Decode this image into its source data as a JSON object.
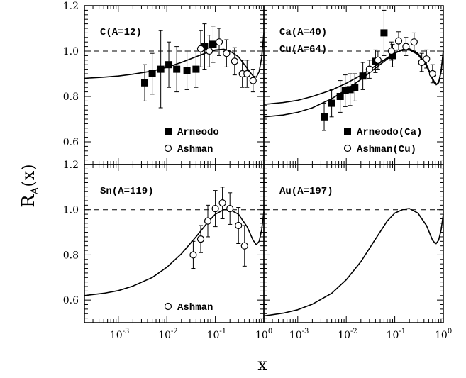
{
  "chart_data": {
    "type": "scatter",
    "xlabel": "x",
    "ylabel": "R_A(x)",
    "ylabel_main": "R",
    "ylabel_sub": "A",
    "ylabel_rest": "(x)",
    "x_scale": "log",
    "xlim": [
      0.0002,
      1.0
    ],
    "ylim": [
      0.5,
      1.2
    ],
    "x_tick_labels": [
      {
        "base": "10",
        "exp": "-3"
      },
      {
        "base": "10",
        "exp": "-2"
      },
      {
        "base": "10",
        "exp": "-1"
      },
      {
        "base": "10",
        "exp": "0"
      }
    ],
    "y_tick_labels": [
      "0.6",
      "0.8",
      "1.0",
      "1.2"
    ],
    "panels": [
      {
        "labels": [
          "C(A=12)"
        ],
        "legend": [
          {
            "marker": "filled-square",
            "text": "Arneodo"
          },
          {
            "marker": "open-circle",
            "text": "Ashman"
          }
        ],
        "series": [
          {
            "name": "Arneodo",
            "marker": "filled-square",
            "points": [
              {
                "x": 0.0035,
                "y": 0.86,
                "err": 0.08
              },
              {
                "x": 0.005,
                "y": 0.9,
                "err": 0.09
              },
              {
                "x": 0.0075,
                "y": 0.92,
                "err": 0.17
              },
              {
                "x": 0.011,
                "y": 0.94,
                "err": 0.1
              },
              {
                "x": 0.016,
                "y": 0.92,
                "err": 0.1
              },
              {
                "x": 0.026,
                "y": 0.915,
                "err": 0.085
              },
              {
                "x": 0.04,
                "y": 0.92,
                "err": 0.08
              },
              {
                "x": 0.06,
                "y": 1.02,
                "err": 0.1
              },
              {
                "x": 0.09,
                "y": 1.03,
                "err": 0.08
              }
            ]
          },
          {
            "name": "Ashman",
            "marker": "open-circle",
            "points": [
              {
                "x": 0.05,
                "y": 1.01,
                "err": 0.08
              },
              {
                "x": 0.075,
                "y": 1.0,
                "err": 0.07
              },
              {
                "x": 0.12,
                "y": 1.04,
                "err": 0.06
              },
              {
                "x": 0.17,
                "y": 0.99,
                "err": 0.06
              },
              {
                "x": 0.25,
                "y": 0.955,
                "err": 0.06
              },
              {
                "x": 0.36,
                "y": 0.9,
                "err": 0.06
              },
              {
                "x": 0.45,
                "y": 0.9,
                "err": 0.06
              },
              {
                "x": 0.6,
                "y": 0.87,
                "err": 0.05
              }
            ]
          }
        ],
        "curves": [
          {
            "x": [
              0.0002,
              0.0005,
              0.001,
              0.002,
              0.005,
              0.01,
              0.02,
              0.04,
              0.07,
              0.1,
              0.15,
              0.2,
              0.3,
              0.45,
              0.6,
              0.7,
              0.8,
              0.9,
              1.0
            ],
            "y": [
              0.88,
              0.885,
              0.89,
              0.898,
              0.912,
              0.928,
              0.95,
              0.975,
              0.995,
              1.005,
              1.008,
              1.0,
              0.975,
              0.925,
              0.89,
              0.885,
              0.91,
              0.97,
              1.08
            ]
          }
        ]
      },
      {
        "labels": [
          "Ca(A=40)",
          "Cu(A=64)"
        ],
        "legend": [
          {
            "marker": "filled-square",
            "text": "Arneodo(Ca)"
          },
          {
            "marker": "open-circle",
            "text": "Ashman(Cu)"
          }
        ],
        "series": [
          {
            "name": "Arneodo(Ca)",
            "marker": "filled-square",
            "points": [
              {
                "x": 0.0035,
                "y": 0.71,
                "err": 0.06
              },
              {
                "x": 0.005,
                "y": 0.77,
                "err": 0.06
              },
              {
                "x": 0.0075,
                "y": 0.8,
                "err": 0.07
              },
              {
                "x": 0.0095,
                "y": 0.825,
                "err": 0.07
              },
              {
                "x": 0.012,
                "y": 0.83,
                "err": 0.07
              },
              {
                "x": 0.015,
                "y": 0.84,
                "err": 0.06
              },
              {
                "x": 0.022,
                "y": 0.89,
                "err": 0.06
              },
              {
                "x": 0.04,
                "y": 0.955,
                "err": 0.05
              },
              {
                "x": 0.06,
                "y": 1.08,
                "err": 0.1
              },
              {
                "x": 0.09,
                "y": 0.98,
                "err": 0.05
              }
            ]
          },
          {
            "name": "Ashman(Cu)",
            "marker": "open-circle",
            "points": [
              {
                "x": 0.03,
                "y": 0.92,
                "err": 0.04
              },
              {
                "x": 0.045,
                "y": 0.96,
                "err": 0.04
              },
              {
                "x": 0.085,
                "y": 1.0,
                "err": 0.04
              },
              {
                "x": 0.12,
                "y": 1.045,
                "err": 0.04
              },
              {
                "x": 0.17,
                "y": 1.02,
                "err": 0.04
              },
              {
                "x": 0.25,
                "y": 1.04,
                "err": 0.04
              },
              {
                "x": 0.36,
                "y": 0.95,
                "err": 0.04
              },
              {
                "x": 0.45,
                "y": 0.965,
                "err": 0.04
              },
              {
                "x": 0.6,
                "y": 0.9,
                "err": 0.04
              }
            ]
          }
        ],
        "curves": [
          {
            "x": [
              0.0002,
              0.0005,
              0.001,
              0.002,
              0.005,
              0.01,
              0.02,
              0.04,
              0.07,
              0.1,
              0.15,
              0.2,
              0.3,
              0.45,
              0.6,
              0.7,
              0.8,
              0.9,
              1.0
            ],
            "y": [
              0.765,
              0.773,
              0.783,
              0.8,
              0.828,
              0.858,
              0.893,
              0.935,
              0.97,
              0.992,
              1.005,
              1.005,
              0.985,
              0.935,
              0.875,
              0.85,
              0.86,
              0.91,
              1.0
            ]
          },
          {
            "x": [
              0.0002,
              0.0005,
              0.001,
              0.002,
              0.005,
              0.01,
              0.02,
              0.04,
              0.07,
              0.1,
              0.15,
              0.2,
              0.3,
              0.45,
              0.6,
              0.7,
              0.8,
              0.9,
              1.0
            ],
            "y": [
              0.71,
              0.718,
              0.73,
              0.75,
              0.79,
              0.83,
              0.875,
              0.925,
              0.965,
              0.99,
              1.008,
              1.01,
              0.99,
              0.94,
              0.88,
              0.852,
              0.862,
              0.91,
              1.0
            ]
          }
        ]
      },
      {
        "labels": [
          "Sn(A=119)"
        ],
        "legend": [
          {
            "marker": "open-circle",
            "text": "Ashman"
          }
        ],
        "series": [
          {
            "name": "Ashman",
            "marker": "open-circle",
            "points": [
              {
                "x": 0.035,
                "y": 0.8,
                "err": 0.06
              },
              {
                "x": 0.05,
                "y": 0.87,
                "err": 0.06
              },
              {
                "x": 0.07,
                "y": 0.95,
                "err": 0.07
              },
              {
                "x": 0.1,
                "y": 1.005,
                "err": 0.08
              },
              {
                "x": 0.14,
                "y": 1.03,
                "err": 0.07
              },
              {
                "x": 0.2,
                "y": 1.005,
                "err": 0.07
              },
              {
                "x": 0.3,
                "y": 0.93,
                "err": 0.08
              },
              {
                "x": 0.4,
                "y": 0.84,
                "err": 0.09
              }
            ]
          }
        ],
        "curves": [
          {
            "x": [
              0.0002,
              0.0005,
              0.001,
              0.002,
              0.005,
              0.01,
              0.02,
              0.04,
              0.07,
              0.1,
              0.15,
              0.2,
              0.3,
              0.45,
              0.6,
              0.7,
              0.8,
              0.9,
              1.0
            ],
            "y": [
              0.62,
              0.63,
              0.642,
              0.662,
              0.7,
              0.745,
              0.805,
              0.88,
              0.945,
              0.98,
              1.0,
              1.0,
              0.98,
              0.925,
              0.865,
              0.845,
              0.86,
              0.91,
              0.99
            ]
          }
        ]
      },
      {
        "labels": [
          "Au(A=197)"
        ],
        "legend": [],
        "series": [],
        "curves": [
          {
            "x": [
              0.0002,
              0.0005,
              0.001,
              0.002,
              0.005,
              0.01,
              0.02,
              0.04,
              0.07,
              0.1,
              0.15,
              0.2,
              0.3,
              0.45,
              0.6,
              0.7,
              0.8,
              0.9,
              1.0
            ],
            "y": [
              0.53,
              0.542,
              0.557,
              0.582,
              0.63,
              0.69,
              0.77,
              0.87,
              0.95,
              0.985,
              1.002,
              1.005,
              0.985,
              0.93,
              0.865,
              0.848,
              0.865,
              0.91,
              0.98
            ]
          }
        ]
      }
    ]
  }
}
